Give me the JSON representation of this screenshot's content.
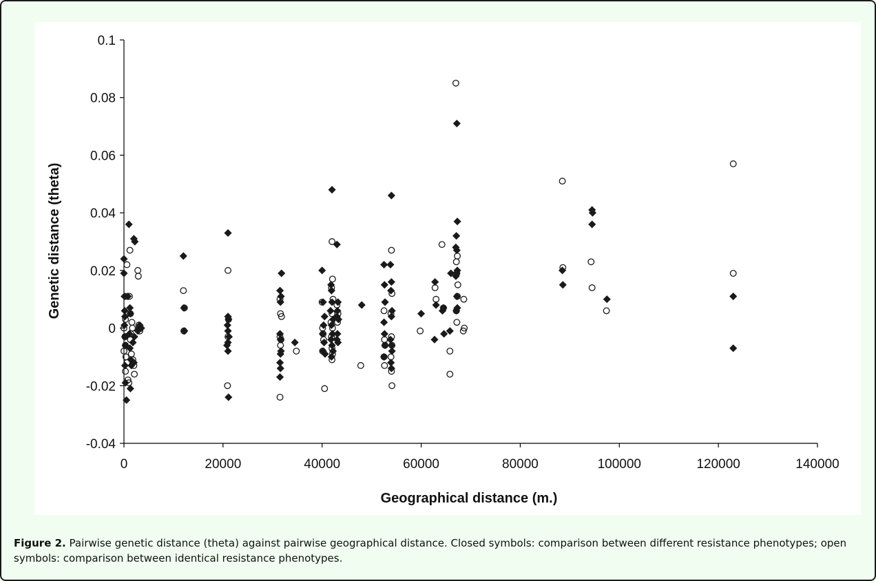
{
  "caption": {
    "label": "Figure 2.",
    "text": "Pairwise genetic distance (theta) against pairwise geographical distance. Closed symbols: comparison between different resistance phenotypes; open symbols: comparison between identical resistance phenotypes."
  },
  "colors": {
    "marker": "#1a1a1a",
    "panel_bg": "#f0fdf0",
    "plot_bg": "#ffffff"
  },
  "chart_data": {
    "type": "scatter",
    "title": "",
    "xlabel": "Geographical distance (m.)",
    "ylabel": "Genetic distance (theta)",
    "xlim": [
      0,
      140000
    ],
    "ylim": [
      -0.04,
      0.1
    ],
    "x_ticks": [
      0,
      20000,
      40000,
      60000,
      80000,
      100000,
      120000,
      140000
    ],
    "y_ticks": [
      -0.04,
      -0.02,
      0,
      0.02,
      0.04,
      0.06,
      0.08,
      0.1
    ],
    "x_tick_labels": [
      "0",
      "20000",
      "40000",
      "60000",
      "80000",
      "100000",
      "120000",
      "140000"
    ],
    "y_tick_labels": [
      "-0.04",
      "-0.02",
      "0",
      "0.02",
      "0.04",
      "0.06",
      "0.08",
      "0.1"
    ],
    "grid": false,
    "legend": "none",
    "series": [
      {
        "marker": "filled-diamond",
        "points": [
          [
            0,
            0.024
          ],
          [
            0,
            0.019
          ],
          [
            100,
            0.011
          ],
          [
            150,
            0.006
          ],
          [
            200,
            0.004
          ],
          [
            100,
            0.001
          ],
          [
            200,
            -0.003
          ],
          [
            300,
            -0.006
          ],
          [
            200,
            -0.013
          ],
          [
            300,
            -0.019
          ],
          [
            500,
            -0.025
          ],
          [
            1000,
            0.036
          ],
          [
            1200,
            0.007
          ],
          [
            1300,
            0.005
          ],
          [
            1100,
            -0.002
          ],
          [
            1200,
            -0.007
          ],
          [
            1400,
            -0.011
          ],
          [
            1500,
            -0.013
          ],
          [
            1300,
            -0.021
          ],
          [
            800,
            0.011
          ],
          [
            2000,
            0.031
          ],
          [
            2200,
            0.03
          ],
          [
            1800,
            -0.005
          ],
          [
            2000,
            -0.012
          ],
          [
            2100,
            -0.003
          ],
          [
            3000,
            0.0
          ],
          [
            3200,
            0.001
          ],
          [
            3500,
            0.0
          ],
          [
            2800,
            -0.001
          ],
          [
            12000,
            0.025
          ],
          [
            12100,
            0.007
          ],
          [
            12200,
            -0.001
          ],
          [
            21000,
            0.033
          ],
          [
            21000,
            0.004
          ],
          [
            21100,
            0.003
          ],
          [
            20900,
            0.001
          ],
          [
            21000,
            -0.001
          ],
          [
            21200,
            -0.003
          ],
          [
            21000,
            -0.005
          ],
          [
            20800,
            -0.006
          ],
          [
            21000,
            -0.008
          ],
          [
            21100,
            -0.024
          ],
          [
            31500,
            0.013
          ],
          [
            31700,
            0.011
          ],
          [
            31600,
            0.009
          ],
          [
            31800,
            0.019
          ],
          [
            31500,
            -0.002
          ],
          [
            31600,
            -0.004
          ],
          [
            31700,
            -0.008
          ],
          [
            31500,
            -0.012
          ],
          [
            31600,
            -0.014
          ],
          [
            31500,
            -0.017
          ],
          [
            31600,
            -0.009
          ],
          [
            34500,
            -0.005
          ],
          [
            40000,
            0.02
          ],
          [
            40200,
            0.009
          ],
          [
            40500,
            0.004
          ],
          [
            40300,
            0.001
          ],
          [
            40100,
            -0.002
          ],
          [
            40400,
            -0.005
          ],
          [
            40200,
            -0.008
          ],
          [
            40600,
            -0.009
          ],
          [
            42000,
            0.048
          ],
          [
            41800,
            0.015
          ],
          [
            41900,
            0.013
          ],
          [
            42000,
            0.009
          ],
          [
            41700,
            0.006
          ],
          [
            42200,
            0.003
          ],
          [
            41900,
            0.001
          ],
          [
            42100,
            -0.002
          ],
          [
            41800,
            -0.004
          ],
          [
            42000,
            -0.006
          ],
          [
            42200,
            -0.008
          ],
          [
            41900,
            -0.01
          ],
          [
            43000,
            0.029
          ],
          [
            43200,
            0.009
          ],
          [
            43100,
            0.006
          ],
          [
            43000,
            0.004
          ],
          [
            43300,
            0.003
          ],
          [
            43100,
            -0.002
          ],
          [
            43000,
            -0.004
          ],
          [
            43200,
            -0.005
          ],
          [
            48000,
            0.008
          ],
          [
            52500,
            0.022
          ],
          [
            52600,
            0.015
          ],
          [
            52700,
            0.009
          ],
          [
            52500,
            0.002
          ],
          [
            52600,
            -0.002
          ],
          [
            52700,
            -0.006
          ],
          [
            52500,
            -0.01
          ],
          [
            54000,
            0.046
          ],
          [
            53800,
            0.022
          ],
          [
            54000,
            0.016
          ],
          [
            53900,
            0.013
          ],
          [
            54100,
            0.006
          ],
          [
            54000,
            0.004
          ],
          [
            53800,
            -0.004
          ],
          [
            54000,
            -0.006
          ],
          [
            54100,
            -0.008
          ],
          [
            53900,
            -0.012
          ],
          [
            54000,
            -0.014
          ],
          [
            60000,
            0.005
          ],
          [
            62800,
            0.016
          ],
          [
            63000,
            0.008
          ],
          [
            62700,
            -0.004
          ],
          [
            64500,
            0.007
          ],
          [
            64300,
            0.006
          ],
          [
            64600,
            -0.002
          ],
          [
            66000,
            0.019
          ],
          [
            65800,
            -0.001
          ],
          [
            67200,
            0.071
          ],
          [
            67300,
            0.037
          ],
          [
            67100,
            0.032
          ],
          [
            67000,
            0.028
          ],
          [
            67200,
            0.027
          ],
          [
            67300,
            0.02
          ],
          [
            67100,
            0.019
          ],
          [
            67000,
            0.018
          ],
          [
            67200,
            0.011
          ],
          [
            67300,
            0.007
          ],
          [
            67100,
            0.006
          ],
          [
            88500,
            0.02
          ],
          [
            88600,
            0.015
          ],
          [
            94500,
            0.041
          ],
          [
            94600,
            0.04
          ],
          [
            94500,
            0.036
          ],
          [
            97500,
            0.01
          ],
          [
            123000,
            0.011
          ],
          [
            123000,
            -0.007
          ]
        ]
      },
      {
        "marker": "open-circle",
        "points": [
          [
            600,
            0.022
          ],
          [
            400,
            0.011
          ],
          [
            300,
            0.003
          ],
          [
            0,
            0.0
          ],
          [
            200,
            -0.003
          ],
          [
            300,
            -0.006
          ],
          [
            0,
            -0.008
          ],
          [
            400,
            -0.01
          ],
          [
            600,
            -0.012
          ],
          [
            300,
            -0.015
          ],
          [
            800,
            -0.018
          ],
          [
            1000,
            -0.019
          ],
          [
            1200,
            0.027
          ],
          [
            1100,
            0.011
          ],
          [
            1300,
            0.005
          ],
          [
            1600,
            0.002
          ],
          [
            1400,
            -0.002
          ],
          [
            1300,
            -0.004
          ],
          [
            1500,
            -0.009
          ],
          [
            1800,
            -0.011
          ],
          [
            2000,
            -0.013
          ],
          [
            2100,
            -0.016
          ],
          [
            1700,
            0.0
          ],
          [
            2800,
            0.02
          ],
          [
            2900,
            0.018
          ],
          [
            3000,
            0.001
          ],
          [
            3200,
            -0.001
          ],
          [
            12000,
            0.013
          ],
          [
            12200,
            0.007
          ],
          [
            12100,
            -0.001
          ],
          [
            21000,
            0.02
          ],
          [
            21100,
            0.003
          ],
          [
            21000,
            -0.003
          ],
          [
            20900,
            -0.02
          ],
          [
            31500,
            0.01
          ],
          [
            31600,
            0.005
          ],
          [
            31800,
            0.004
          ],
          [
            31500,
            -0.003
          ],
          [
            31700,
            -0.004
          ],
          [
            31600,
            -0.006
          ],
          [
            31500,
            -0.024
          ],
          [
            34800,
            -0.008
          ],
          [
            40000,
            0.009
          ],
          [
            40100,
            0.0
          ],
          [
            40200,
            -0.002
          ],
          [
            40300,
            -0.004
          ],
          [
            40100,
            -0.008
          ],
          [
            40500,
            -0.021
          ],
          [
            42000,
            0.03
          ],
          [
            42100,
            0.017
          ],
          [
            41900,
            0.014
          ],
          [
            42200,
            0.01
          ],
          [
            42000,
            0.005
          ],
          [
            41800,
            0.002
          ],
          [
            42100,
            0.0
          ],
          [
            41900,
            -0.003
          ],
          [
            42000,
            -0.007
          ],
          [
            42100,
            -0.009
          ],
          [
            42000,
            -0.011
          ],
          [
            43000,
            0.008
          ],
          [
            43200,
            0.005
          ],
          [
            43100,
            0.002
          ],
          [
            47800,
            -0.013
          ],
          [
            52500,
            0.006
          ],
          [
            52600,
            -0.004
          ],
          [
            52700,
            -0.006
          ],
          [
            52500,
            -0.01
          ],
          [
            52600,
            -0.013
          ],
          [
            54000,
            0.027
          ],
          [
            54100,
            0.012
          ],
          [
            53900,
            0.005
          ],
          [
            54000,
            -0.003
          ],
          [
            54100,
            -0.006
          ],
          [
            53900,
            -0.01
          ],
          [
            54000,
            -0.015
          ],
          [
            54100,
            -0.02
          ],
          [
            59800,
            -0.001
          ],
          [
            62800,
            0.014
          ],
          [
            63000,
            0.01
          ],
          [
            64200,
            0.029
          ],
          [
            64500,
            0.007
          ],
          [
            65800,
            -0.008
          ],
          [
            65800,
            -0.016
          ],
          [
            67000,
            0.085
          ],
          [
            67300,
            0.025
          ],
          [
            67100,
            0.023
          ],
          [
            67200,
            0.019
          ],
          [
            67400,
            0.015
          ],
          [
            67300,
            0.011
          ],
          [
            67100,
            0.006
          ],
          [
            67200,
            0.002
          ],
          [
            68600,
            0.01
          ],
          [
            68700,
            0.0
          ],
          [
            68500,
            -0.001
          ],
          [
            88500,
            0.051
          ],
          [
            88600,
            0.021
          ],
          [
            94300,
            0.023
          ],
          [
            94500,
            0.014
          ],
          [
            97400,
            0.006
          ],
          [
            123000,
            0.057
          ],
          [
            123000,
            0.019
          ]
        ]
      }
    ]
  }
}
